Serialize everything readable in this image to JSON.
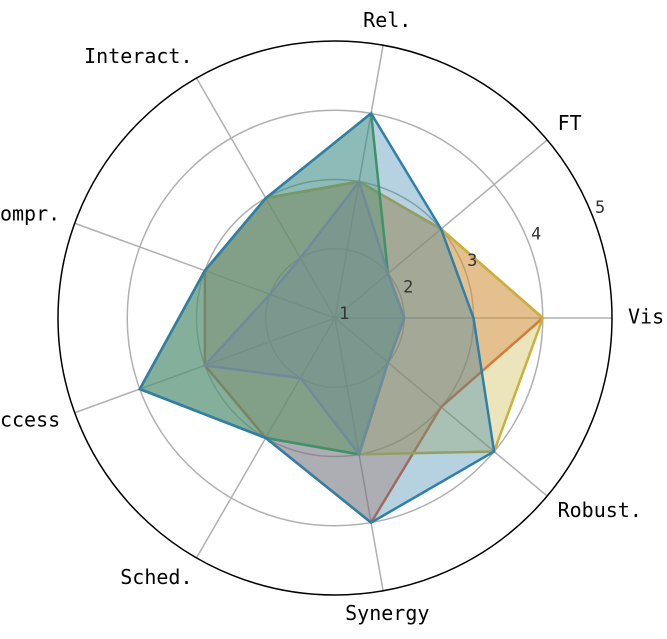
{
  "chart_data": {
    "type": "radar",
    "categories": [
      "Vis.",
      "FT",
      "Rel.",
      "Interact.",
      "Compr.",
      "Access",
      "Sched.",
      "Synergy",
      "Robust."
    ],
    "rlim": [
      1,
      5
    ],
    "rticks": [
      1,
      2,
      3,
      4,
      5
    ],
    "grid": true,
    "series": [
      {
        "color": "#d9603b",
        "values": [
          4,
          3,
          3,
          3,
          3,
          3,
          3,
          4,
          3
        ]
      },
      {
        "color": "#c9b13c",
        "values": [
          4,
          3,
          3,
          3,
          3,
          4,
          3,
          3,
          4
        ]
      },
      {
        "color": "#4b9a4b",
        "values": [
          2,
          2,
          4,
          3,
          3,
          4,
          3,
          3,
          2
        ]
      },
      {
        "color": "#2f7fa8",
        "values": [
          3,
          3,
          4,
          3,
          3,
          4,
          3,
          4,
          4
        ]
      },
      {
        "color": "#6f8a9a",
        "values": [
          2,
          2,
          3,
          2,
          2,
          3,
          2,
          3,
          2
        ]
      }
    ]
  }
}
